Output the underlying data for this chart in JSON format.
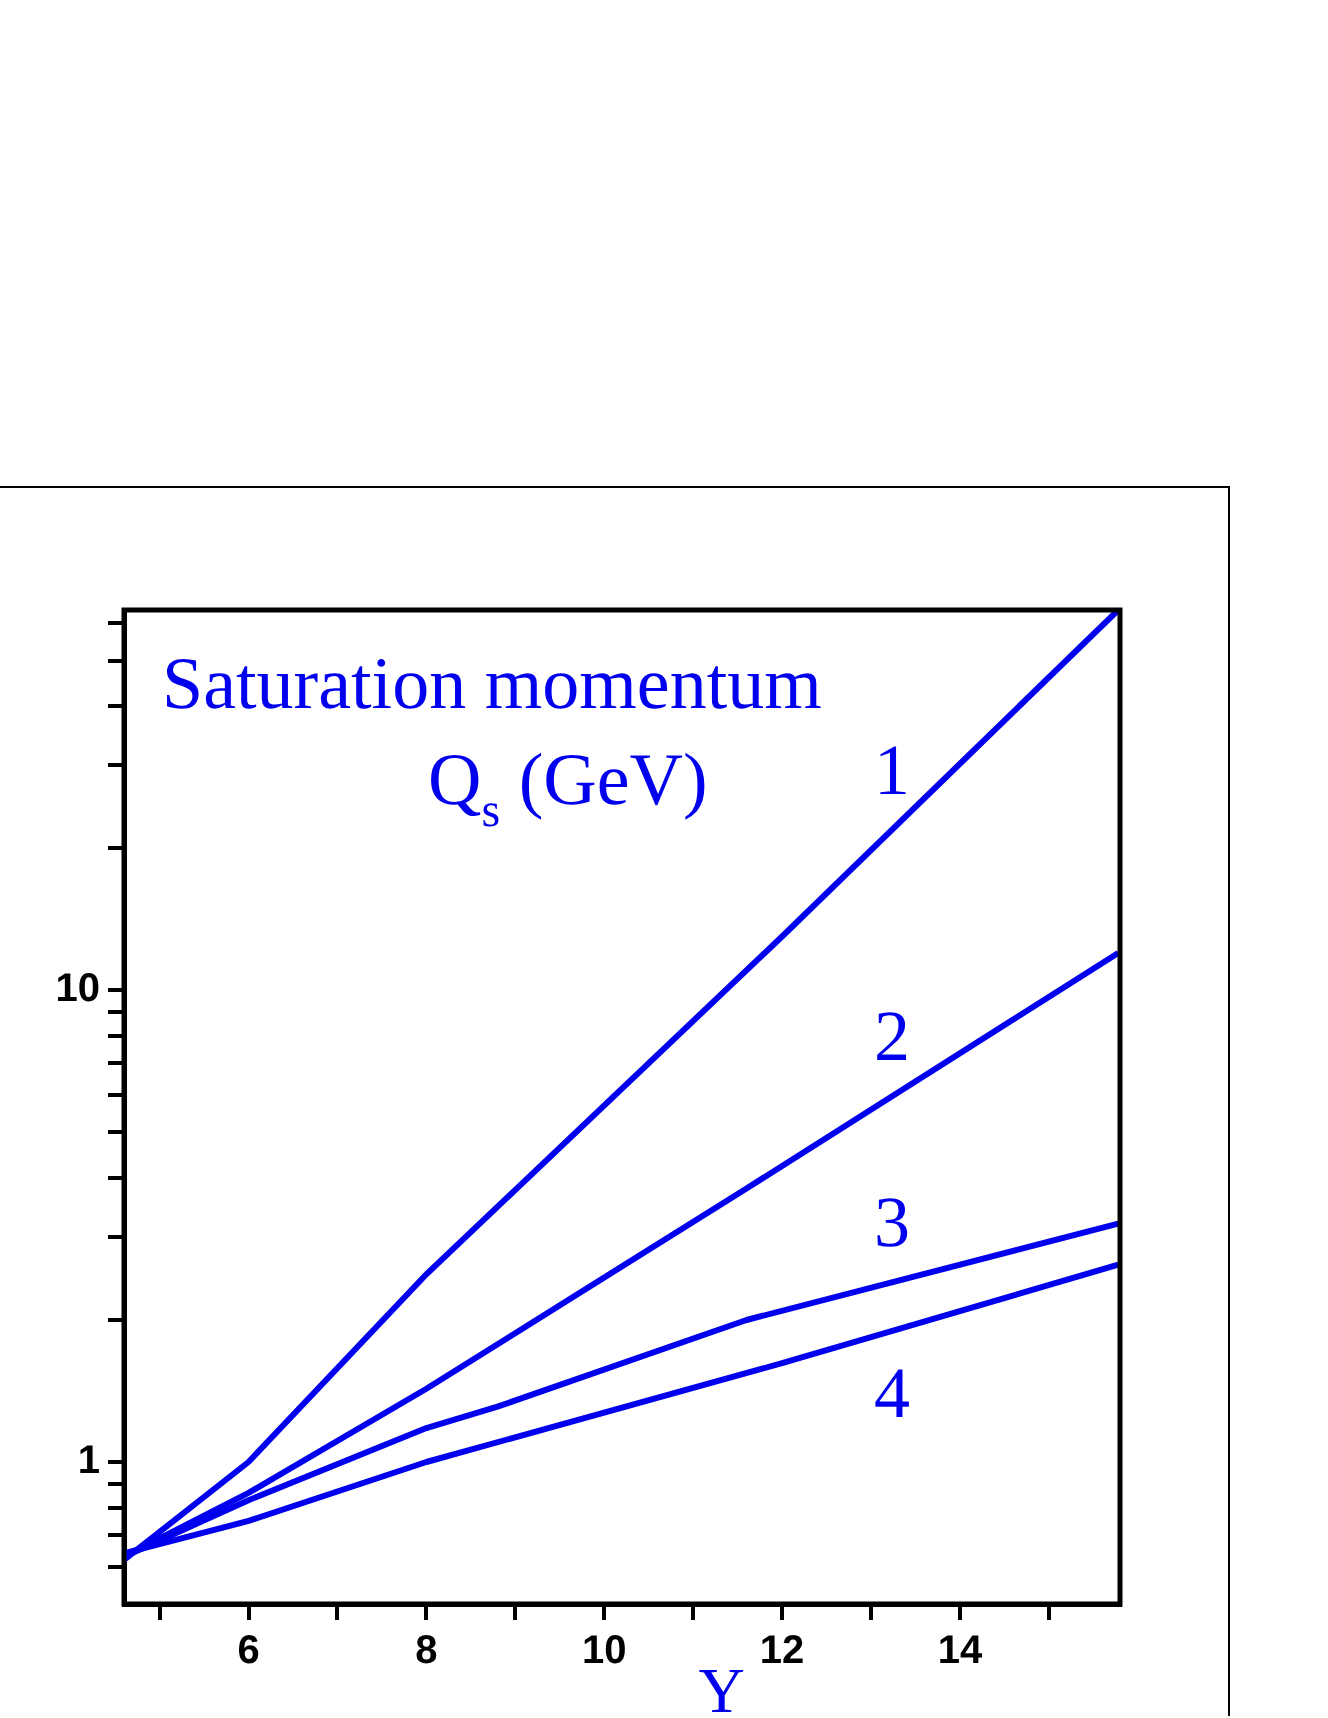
{
  "chart_data": {
    "type": "line",
    "xlabel": "Y",
    "annotations": [
      "Saturation momentum",
      "Q$_{s}$ (GeV)"
    ],
    "log": "y",
    "grid": false,
    "legend": false,
    "line_style": "solid",
    "marker": "none",
    "xlim": [
      4.6,
      15.8
    ],
    "xticks": [
      {
        "value": 5,
        "label": null
      },
      6,
      {
        "value": 7,
        "label": null
      },
      8,
      {
        "value": 9,
        "label": null
      },
      10,
      {
        "value": 11,
        "label": null
      },
      12,
      {
        "value": 13,
        "label": null
      },
      14,
      {
        "value": 15,
        "label": null
      }
    ],
    "ylim": [
      0.5,
      64
    ],
    "yticks": [
      {
        "value": 0.6,
        "label": null
      },
      {
        "value": 0.7,
        "label": null
      },
      {
        "value": 0.8,
        "label": null
      },
      {
        "value": 0.9,
        "label": null
      },
      1,
      {
        "value": 2,
        "label": null
      },
      {
        "value": 3,
        "label": null
      },
      {
        "value": 4,
        "label": null
      },
      {
        "value": 5,
        "label": null
      },
      {
        "value": 6,
        "label": null
      },
      {
        "value": 7,
        "label": null
      },
      {
        "value": 8,
        "label": null
      },
      {
        "value": 9,
        "label": null
      },
      10,
      {
        "value": 20,
        "label": null
      },
      {
        "value": 30,
        "label": null
      },
      {
        "value": 40,
        "label": null
      },
      {
        "value": 50,
        "label": null
      },
      {
        "value": 60,
        "label": null
      }
    ],
    "series": [
      {
        "name": "1",
        "color": "#0000ee",
        "x": [
          4.6,
          6,
          8,
          12,
          15.78
        ],
        "values": [
          0.62,
          1.0,
          2.5,
          13,
          64
        ]
      },
      {
        "name": "2",
        "color": "#0000ee",
        "x": [
          4.6,
          6,
          8,
          11.6,
          15.78
        ],
        "values": [
          0.63,
          0.86,
          1.43,
          3.8,
          12
        ]
      },
      {
        "name": "3",
        "color": "#0000ee",
        "x": [
          4.6,
          6,
          8,
          8.8,
          11.6,
          15.78
        ],
        "values": [
          0.63,
          0.83,
          1.18,
          1.31,
          2.0,
          3.2
        ]
      },
      {
        "name": "4",
        "color": "#0000ee",
        "x": [
          4.6,
          6,
          8,
          12,
          15.78
        ],
        "values": [
          0.64,
          0.75,
          1.0,
          1.62,
          2.62
        ]
      }
    ]
  }
}
